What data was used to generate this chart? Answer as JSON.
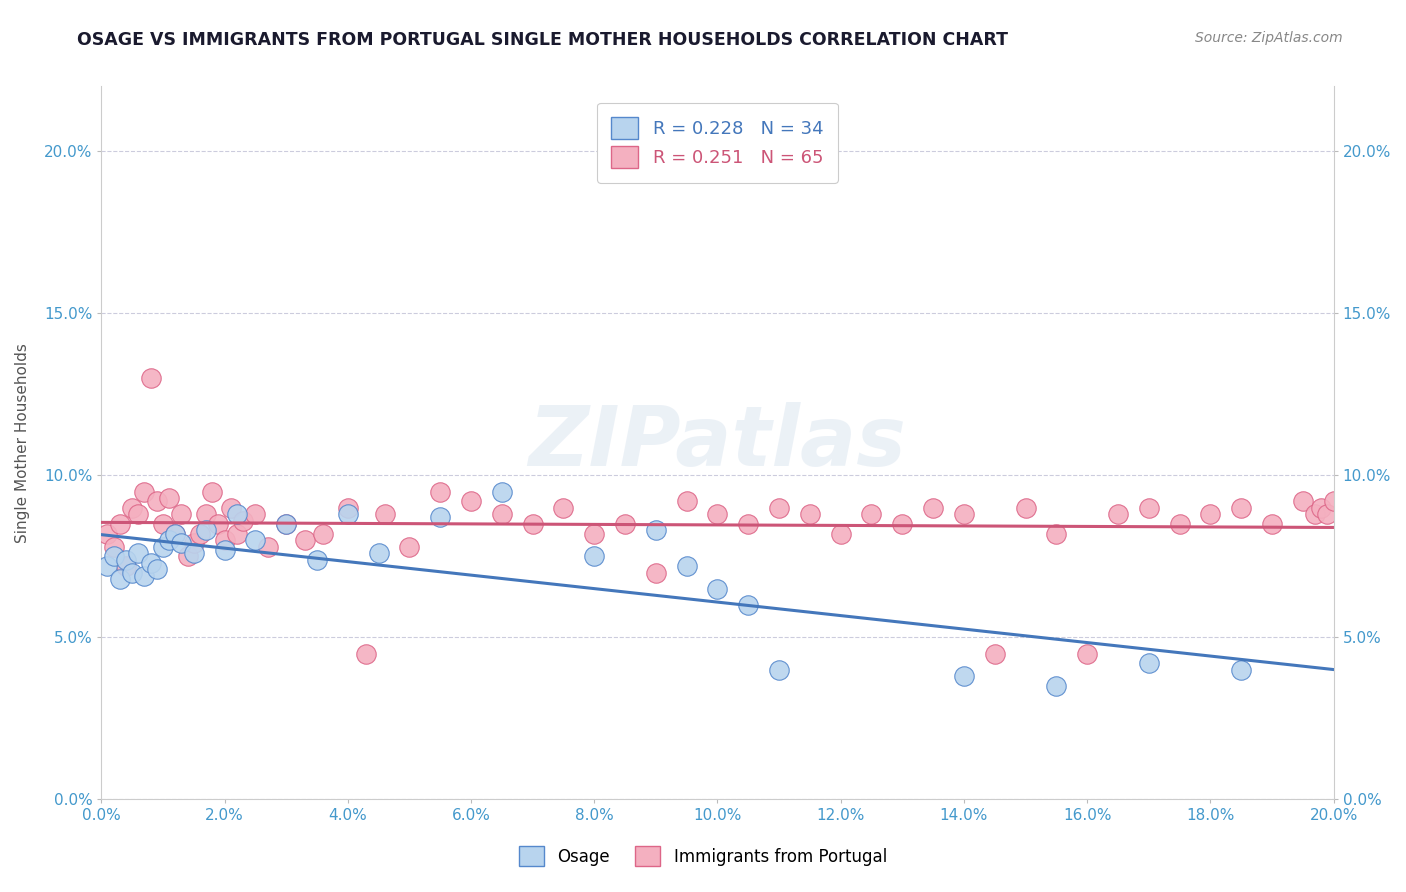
{
  "title": "OSAGE VS IMMIGRANTS FROM PORTUGAL SINGLE MOTHER HOUSEHOLDS CORRELATION CHART",
  "source": "Source: ZipAtlas.com",
  "ylabel": "Single Mother Households",
  "xlim": [
    0.0,
    0.2
  ],
  "ylim": [
    0.0,
    0.22
  ],
  "xtick_vals": [
    0.0,
    0.02,
    0.04,
    0.06,
    0.08,
    0.1,
    0.12,
    0.14,
    0.16,
    0.18,
    0.2
  ],
  "ytick_vals": [
    0.0,
    0.05,
    0.1,
    0.15,
    0.2
  ],
  "series_blue": {
    "name": "Osage",
    "face_color": "#b8d4ee",
    "edge_color": "#5588cc",
    "line_color": "#4477bb",
    "R": 0.228,
    "N": 34,
    "x": [
      0.001,
      0.002,
      0.003,
      0.004,
      0.005,
      0.006,
      0.007,
      0.008,
      0.009,
      0.01,
      0.011,
      0.012,
      0.013,
      0.015,
      0.017,
      0.02,
      0.022,
      0.025,
      0.03,
      0.035,
      0.04,
      0.045,
      0.055,
      0.065,
      0.08,
      0.09,
      0.095,
      0.1,
      0.105,
      0.11,
      0.14,
      0.155,
      0.17,
      0.185
    ],
    "y": [
      0.072,
      0.075,
      0.068,
      0.074,
      0.07,
      0.076,
      0.069,
      0.073,
      0.071,
      0.078,
      0.08,
      0.082,
      0.079,
      0.076,
      0.083,
      0.077,
      0.088,
      0.08,
      0.085,
      0.074,
      0.088,
      0.076,
      0.087,
      0.095,
      0.075,
      0.083,
      0.072,
      0.065,
      0.06,
      0.04,
      0.038,
      0.035,
      0.042,
      0.04
    ]
  },
  "series_pink": {
    "name": "Immigrants from Portugal",
    "face_color": "#f4b0c0",
    "edge_color": "#dd6688",
    "line_color": "#cc5577",
    "R": 0.251,
    "N": 65,
    "x": [
      0.001,
      0.002,
      0.003,
      0.004,
      0.005,
      0.006,
      0.007,
      0.008,
      0.009,
      0.01,
      0.011,
      0.012,
      0.013,
      0.014,
      0.015,
      0.016,
      0.017,
      0.018,
      0.019,
      0.02,
      0.021,
      0.022,
      0.023,
      0.025,
      0.027,
      0.03,
      0.033,
      0.036,
      0.04,
      0.043,
      0.046,
      0.05,
      0.055,
      0.06,
      0.065,
      0.07,
      0.075,
      0.08,
      0.085,
      0.09,
      0.095,
      0.1,
      0.105,
      0.11,
      0.115,
      0.12,
      0.125,
      0.13,
      0.135,
      0.14,
      0.145,
      0.15,
      0.155,
      0.16,
      0.165,
      0.17,
      0.175,
      0.18,
      0.185,
      0.19,
      0.195,
      0.197,
      0.198,
      0.199,
      0.2
    ],
    "y": [
      0.082,
      0.078,
      0.085,
      0.072,
      0.09,
      0.088,
      0.095,
      0.13,
      0.092,
      0.085,
      0.093,
      0.082,
      0.088,
      0.075,
      0.079,
      0.082,
      0.088,
      0.095,
      0.085,
      0.08,
      0.09,
      0.082,
      0.086,
      0.088,
      0.078,
      0.085,
      0.08,
      0.082,
      0.09,
      0.045,
      0.088,
      0.078,
      0.095,
      0.092,
      0.088,
      0.085,
      0.09,
      0.082,
      0.085,
      0.07,
      0.092,
      0.088,
      0.085,
      0.09,
      0.088,
      0.082,
      0.088,
      0.085,
      0.09,
      0.088,
      0.045,
      0.09,
      0.082,
      0.045,
      0.088,
      0.09,
      0.085,
      0.088,
      0.09,
      0.085,
      0.092,
      0.088,
      0.09,
      0.088,
      0.092
    ]
  },
  "background_color": "#ffffff",
  "grid_color": "#ccccdd",
  "title_color": "#1a1a2e",
  "axis_tick_color": "#4499cc",
  "marker_size": 14,
  "watermark_text": "ZIPatlas",
  "watermark_color": "#c8d8e8",
  "watermark_alpha": 0.35
}
